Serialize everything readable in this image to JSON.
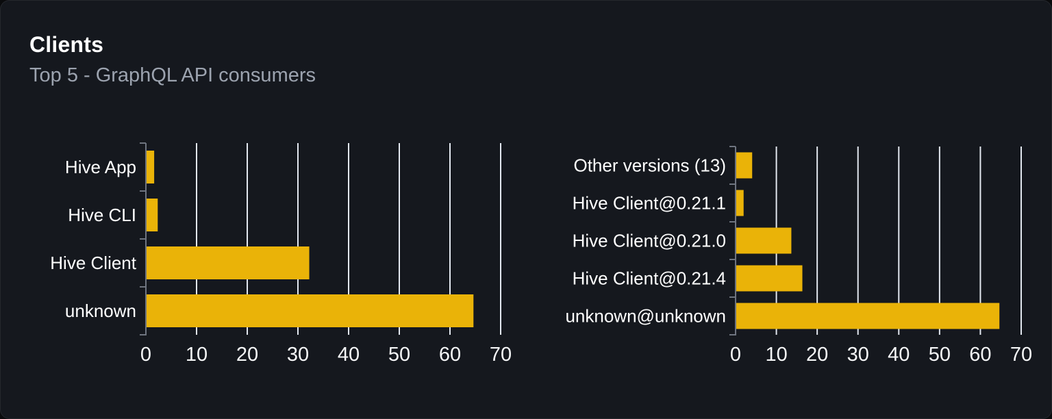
{
  "card": {
    "title": "Clients",
    "subtitle": "Top 5 - GraphQL API consumers"
  },
  "colors": {
    "bar": "#eab308",
    "grid": "#e3e8f0",
    "axis": "#6f7580",
    "category_label": "#ffffff",
    "tick_label": "#f5f6f7",
    "subtitle": "#9ca3af",
    "card_bg": "#15181e"
  },
  "chart_data": [
    {
      "type": "bar",
      "orientation": "horizontal",
      "name": "clients-chart",
      "categories": [
        "Hive App",
        "Hive CLI",
        "Hive Client",
        "unknown"
      ],
      "values": [
        1.5,
        2.2,
        32.1,
        64.5
      ],
      "xlim": [
        0,
        70
      ],
      "xticks": [
        0,
        10,
        20,
        30,
        40,
        50,
        60,
        70
      ],
      "grid": true,
      "legend": "none"
    },
    {
      "type": "bar",
      "orientation": "horizontal",
      "name": "client-versions-chart",
      "categories": [
        "Other versions (13)",
        "Hive Client@0.21.1",
        "Hive Client@0.21.0",
        "Hive Client@0.21.4",
        "unknown@unknown"
      ],
      "values": [
        3.9,
        1.8,
        13.5,
        16.2,
        64.5
      ],
      "xlim": [
        0,
        70
      ],
      "xticks": [
        0,
        10,
        20,
        30,
        40,
        50,
        60,
        70
      ],
      "grid": true,
      "legend": "none"
    }
  ]
}
